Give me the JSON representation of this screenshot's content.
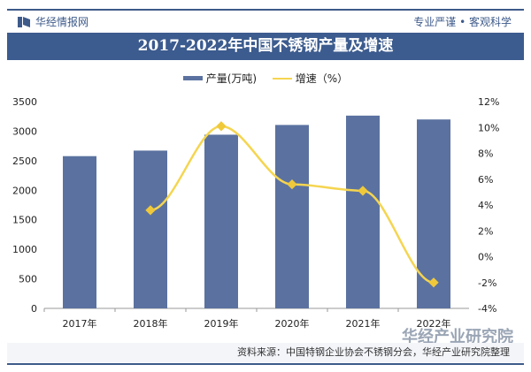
{
  "header": {
    "brand": "华经情报网",
    "slogan": "专业严谨 • 客观科学"
  },
  "watermark": "华经产业研究院",
  "source": "资料来源：中国特钢企业协会不锈钢分会，华经产业研究院整理",
  "colors": {
    "bar": "#5b72a0",
    "line": "#f5d550",
    "title_bg": "#3c5b8e"
  },
  "chart_data": {
    "type": "bar+line",
    "title": "2017-2022年中国不锈钢产量及增速",
    "categories": [
      "2017年",
      "2018年",
      "2019年",
      "2020年",
      "2021年",
      "2022年"
    ],
    "series": [
      {
        "name": "产量(万吨)",
        "type": "bar",
        "axis": "left",
        "values": [
          2577,
          2671,
          2940,
          3105,
          3263,
          3198
        ]
      },
      {
        "name": "增速（%）",
        "type": "line",
        "axis": "right",
        "values": [
          null,
          3.6,
          10.1,
          5.6,
          5.1,
          -2.0
        ]
      }
    ],
    "ylim_left": [
      0,
      3500
    ],
    "yticks_left": [
      "0",
      "500",
      "1000",
      "1500",
      "2000",
      "2500",
      "3000",
      "3500"
    ],
    "ylim_right": [
      -4,
      12
    ],
    "yticks_right": [
      "-4%",
      "-2%",
      "0%",
      "2%",
      "4%",
      "6%",
      "8%",
      "10%",
      "12%"
    ],
    "grid": false,
    "legend": "top-center"
  }
}
